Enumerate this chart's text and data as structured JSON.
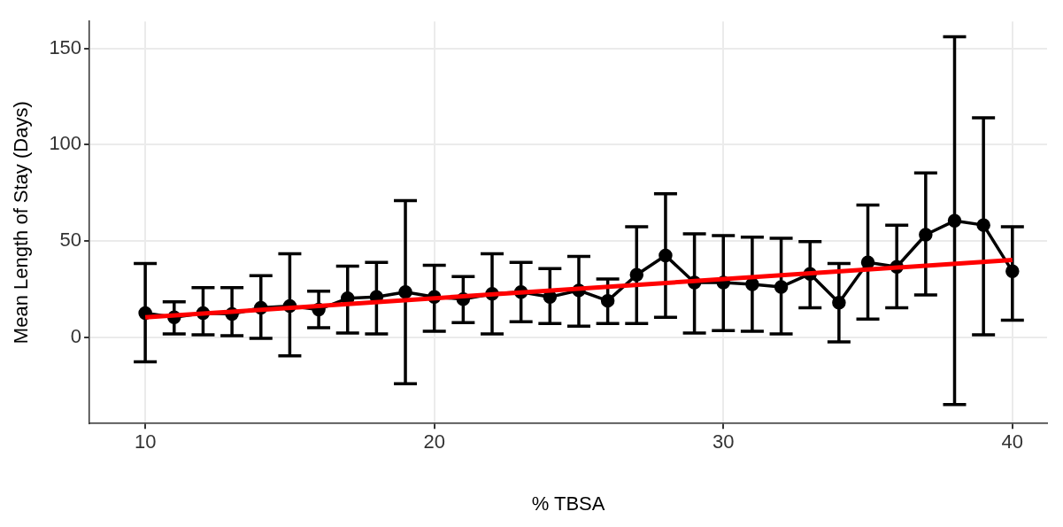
{
  "chart_data": {
    "type": "line",
    "xlabel": "% TBSA",
    "ylabel": "Mean Length of Stay (Days)",
    "x": [
      10,
      11,
      12,
      13,
      14,
      15,
      16,
      17,
      18,
      19,
      20,
      21,
      22,
      23,
      24,
      25,
      26,
      27,
      28,
      29,
      30,
      31,
      32,
      33,
      34,
      35,
      36,
      37,
      38,
      39,
      40
    ],
    "series": [
      {
        "type": "line",
        "color": "#000000",
        "marker": "circle",
        "values": [
          12.6,
          10.4,
          12.6,
          12.2,
          15.4,
          16.3,
          14.5,
          20.3,
          21,
          23.5,
          21,
          19.9,
          22.6,
          23.5,
          21,
          24.4,
          19,
          32.5,
          42.5,
          28.5,
          28.5,
          27.6,
          26.2,
          33,
          18,
          38.9,
          36.6,
          53.3,
          60.5,
          58.3,
          34.3
        ],
        "errors": [
          [
            -12.7,
            38.4
          ],
          [
            1.8,
            18.5
          ],
          [
            1.4,
            25.8
          ],
          [
            0.9,
            25.8
          ],
          [
            -0.5,
            32
          ],
          [
            -9.5,
            43.4
          ],
          [
            5,
            24
          ],
          [
            2.3,
            37
          ],
          [
            1.8,
            38.9
          ],
          [
            -24,
            71
          ],
          [
            3.2,
            37.5
          ],
          [
            7.7,
            31.6
          ],
          [
            1.8,
            43.4
          ],
          [
            8.1,
            38.9
          ],
          [
            7.2,
            35.7
          ],
          [
            5.9,
            42
          ],
          [
            7.2,
            30.3
          ],
          [
            7.2,
            57.4
          ],
          [
            10.4,
            74.6
          ],
          [
            2.3,
            53.8
          ],
          [
            3.6,
            52.9
          ],
          [
            3.2,
            52
          ],
          [
            1.8,
            51.5
          ],
          [
            15.4,
            49.7
          ],
          [
            -2.3,
            38.4
          ],
          [
            9.5,
            68.7
          ],
          [
            15.4,
            58.3
          ],
          [
            22.1,
            85.4
          ],
          [
            -34.8,
            156
          ],
          [
            1.4,
            114
          ],
          [
            9,
            57.4
          ]
        ]
      },
      {
        "type": "line",
        "color": "#ff0000",
        "marker": "none",
        "x": [
          10,
          40
        ],
        "values": [
          10.4,
          40.2
        ]
      }
    ],
    "xlim": [
      8.07,
      41.2
    ],
    "xticks": [
      10,
      20,
      30,
      40
    ],
    "ylim": [
      -44.7,
      164
    ],
    "yticks": [
      0,
      50,
      100,
      150
    ],
    "grid": true,
    "legend": false
  }
}
